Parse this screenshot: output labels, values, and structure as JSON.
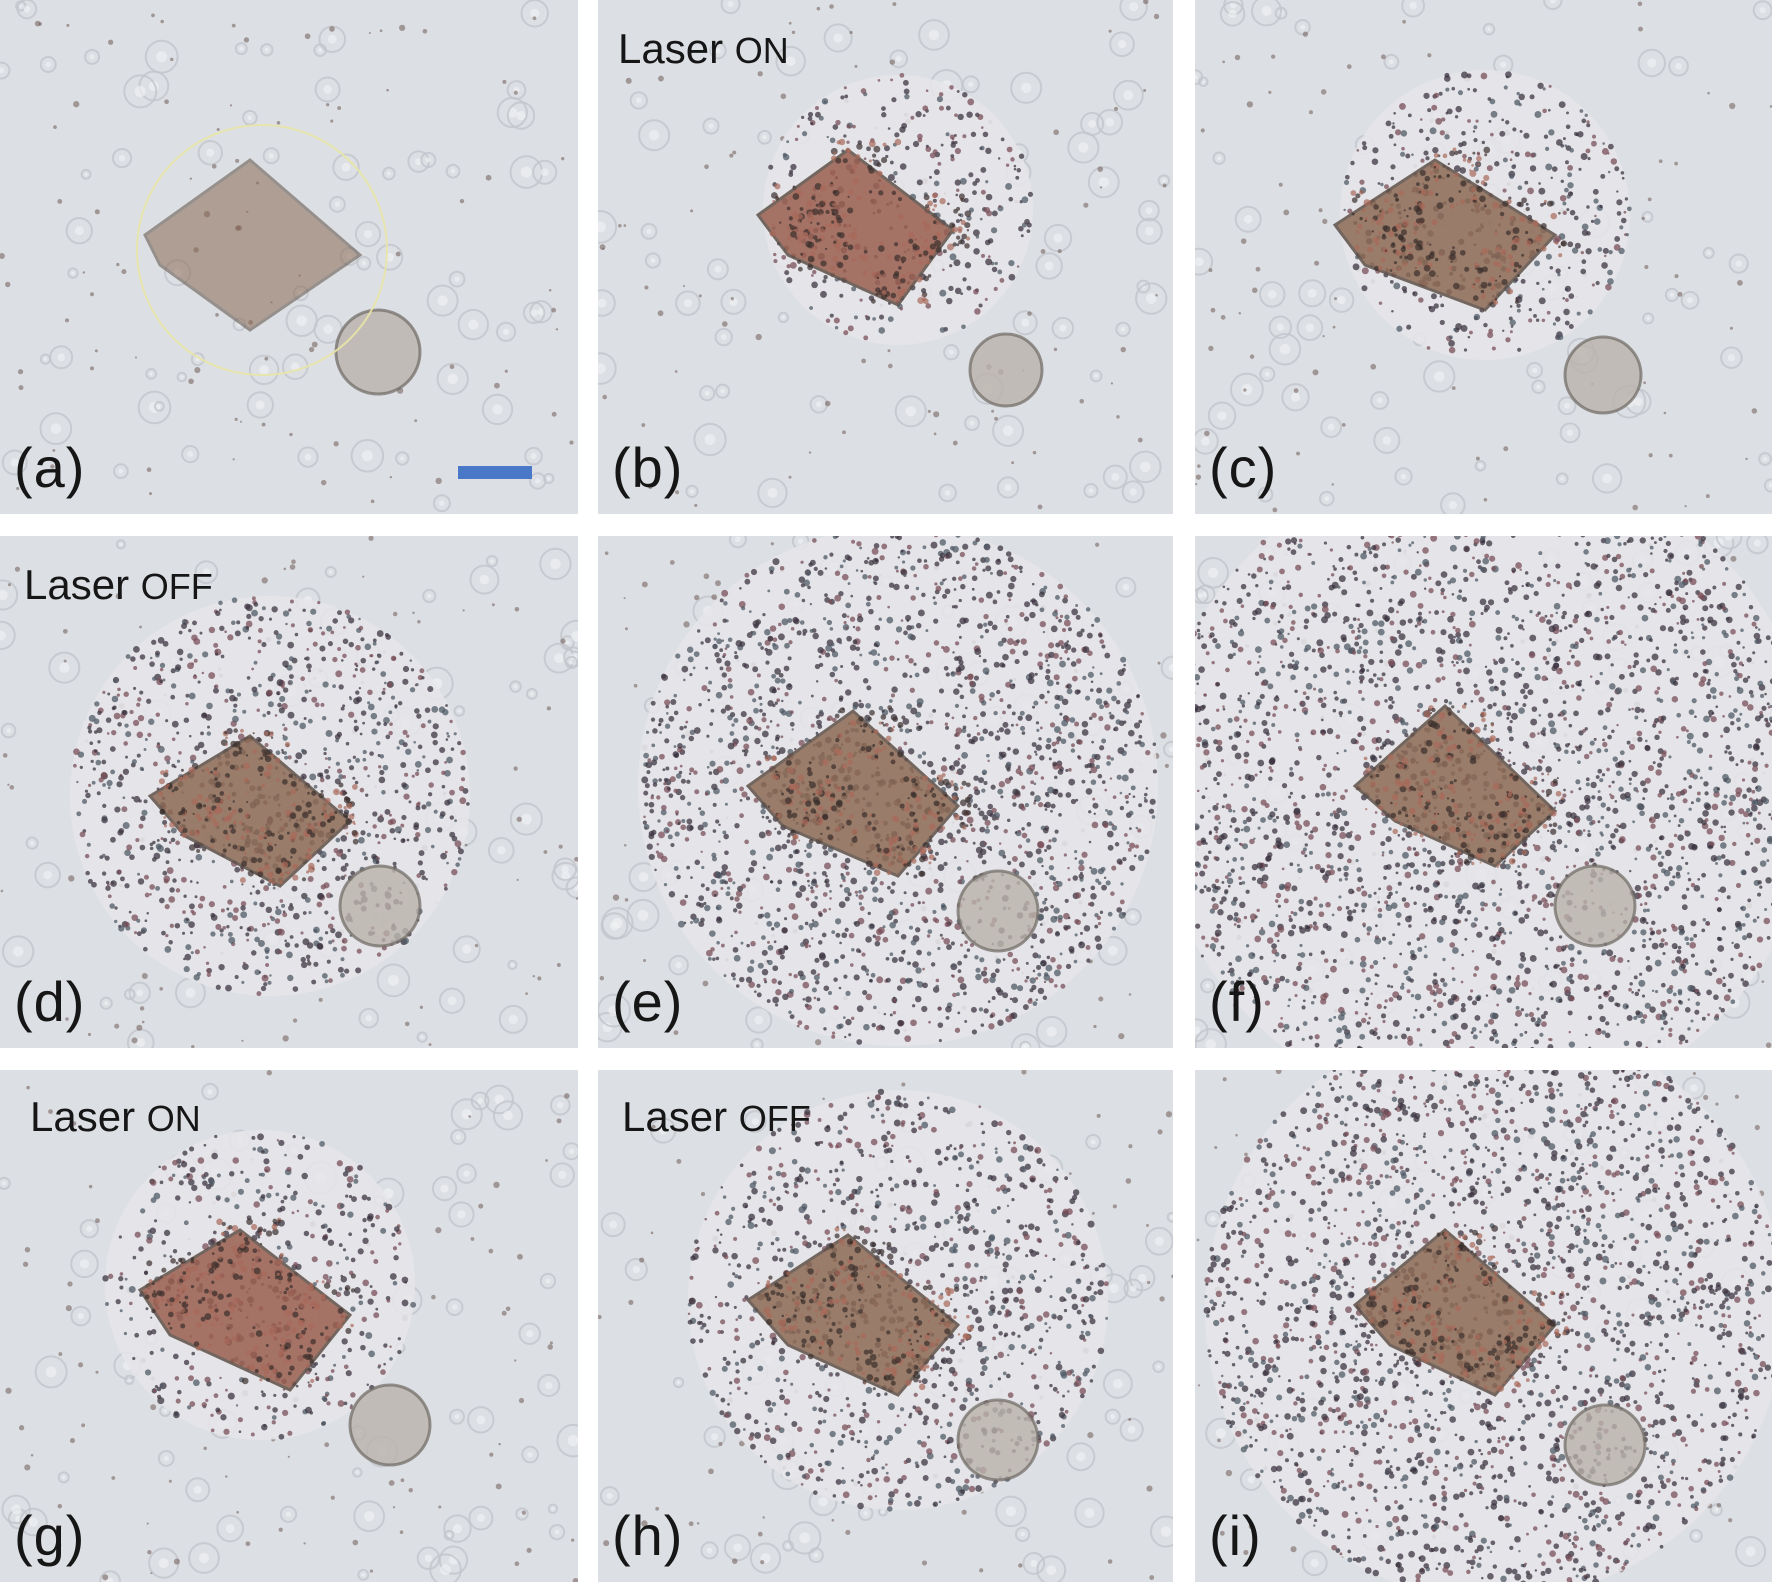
{
  "panels": [
    {
      "id": "a",
      "label": "(a)",
      "laser": null,
      "scalebar": true
    },
    {
      "id": "b",
      "label": "(b)",
      "laser": {
        "word": "Laser",
        "state": "ON"
      }
    },
    {
      "id": "c",
      "label": "(c)",
      "laser": null
    },
    {
      "id": "d",
      "label": "(d)",
      "laser": {
        "word": "Laser",
        "state": "OFF"
      }
    },
    {
      "id": "e",
      "label": "(e)",
      "laser": null
    },
    {
      "id": "f",
      "label": "(f)",
      "laser": null
    },
    {
      "id": "g",
      "label": "(g)",
      "laser": {
        "word": "Laser",
        "state": "ON"
      }
    },
    {
      "id": "h",
      "label": "(h)",
      "laser": {
        "word": "Laser",
        "state": "OFF"
      }
    },
    {
      "id": "i",
      "label": "(i)",
      "laser": null
    }
  ],
  "colors": {
    "background": "#dcdfe3",
    "scalebar": "#4a78c8",
    "particle": "#8c6a55",
    "particle_hot": "#9b5f50"
  }
}
